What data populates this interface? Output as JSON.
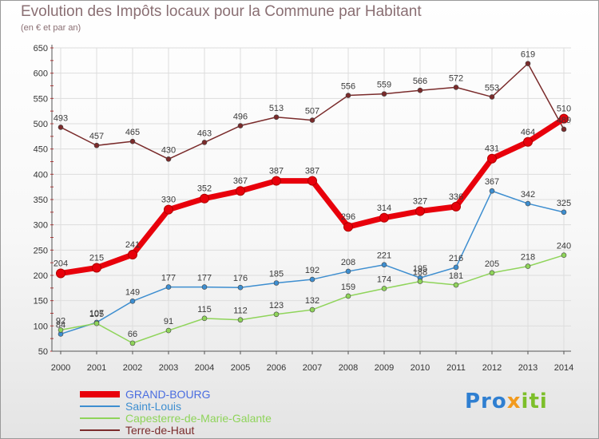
{
  "title": "Evolution des Impôts locaux pour la Commune par Habitant",
  "subtitle": "(en € et par an)",
  "logo": {
    "p1": "Pro",
    "p2": "x",
    "p3": "iti"
  },
  "chart_data": {
    "type": "line",
    "title": "Evolution des Impôts locaux pour la Commune par Habitant",
    "subtitle": "(en € et par an)",
    "xlabel": "",
    "ylabel": "",
    "ylim": [
      50,
      650
    ],
    "yticks": [
      50,
      100,
      150,
      200,
      250,
      300,
      350,
      400,
      450,
      500,
      550,
      600,
      650
    ],
    "categories": [
      "2000",
      "2001",
      "2002",
      "2003",
      "2004",
      "2005",
      "2006",
      "2007",
      "2008",
      "2009",
      "2010",
      "2011",
      "2012",
      "2013",
      "2014"
    ],
    "grid": true,
    "legend": "bottom-left",
    "series": [
      {
        "name": "Terre-de-Haut",
        "color": "#7a2b2b",
        "values": [
          493,
          457,
          465,
          430,
          463,
          496,
          513,
          507,
          556,
          559,
          566,
          572,
          553,
          619,
          489
        ]
      },
      {
        "name": "Saint-Louis",
        "color": "#3d8ed0",
        "values": [
          84,
          107,
          149,
          177,
          177,
          176,
          185,
          192,
          208,
          221,
          195,
          216,
          367,
          342,
          325
        ]
      },
      {
        "name": "Capesterre-de-Marie-Galante",
        "color": "#8fd45a",
        "values": [
          92,
          105,
          66,
          91,
          115,
          112,
          123,
          132,
          159,
          174,
          188,
          181,
          205,
          218,
          240
        ]
      },
      {
        "name": "GRAND-BOURG",
        "color": "#e8000b",
        "values": [
          204,
          215,
          241,
          330,
          352,
          367,
          387,
          387,
          296,
          314,
          327,
          336,
          431,
          464,
          510
        ]
      }
    ],
    "legend_order": [
      "GRAND-BOURG",
      "Saint-Louis",
      "Capesterre-de-Marie-Galante",
      "Terre-de-Haut"
    ]
  }
}
